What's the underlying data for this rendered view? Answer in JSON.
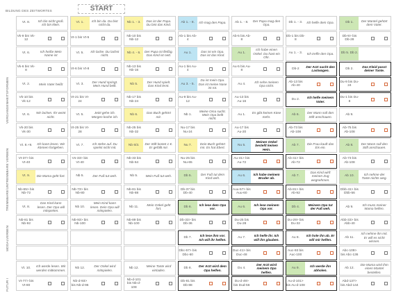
{
  "page": {
    "start_label": "START"
  },
  "bands": [
    {
      "label": "Bildung des Zeitwortes",
      "orient": "horizontal"
    },
    {
      "label": "Vergangenheitsformen",
      "orient": "vertical"
    },
    {
      "label": "Trennbare/untrennbare Verben",
      "orient": "vertical"
    },
    {
      "label": "Modalverben",
      "orient": "vertical"
    },
    {
      "label": "Futur I",
      "orient": "vertical"
    }
  ],
  "rows": [
    [
      {
        "t": "Vt. 8.",
        "s": "Ich bin nicht groß. Ich bin klein.",
        "c": "w"
      },
      {
        "t": "Vt. 1.",
        "s": "Ich bin da. Du bist nicht da.",
        "c": "y"
      },
      {
        "t": "Nb 1. - 3.",
        "s": "Das ist der Papa. Du bist das Kind.",
        "c": "y"
      },
      {
        "t": "Ab 1. - 8.",
        "s": "Ich mag den Papa.",
        "c": "b"
      },
      {
        "t": "Ab 1. - 8.",
        "s": "Der Papa mag den Opa.",
        "c": "w"
      },
      {
        "t": "Db 1. - 3.",
        "s": "Ich helfe dem Opa.",
        "c": "w"
      },
      {
        "t": "Db 1.",
        "s": "Der Mantel gehört dem Vater.",
        "c": "g"
      }
    ],
    [
      {
        "t": "Vk-9 bis Vk-12",
        "s": "",
        "c": "w",
        "box": true
      },
      {
        "t": "Vt-1 bis Vt-5",
        "s": "",
        "c": "w",
        "box": true
      },
      {
        "t": "Nb-10 bis Nb-12",
        "s": "",
        "c": "w",
        "box": true
      },
      {
        "t": "Ab-1 bis Ab-4",
        "s": "",
        "c": "w",
        "box": true
      },
      {
        "t": "Ab-5 bis Ab-8",
        "s": "",
        "c": "w",
        "box": true
      },
      {
        "t": "Db-1 bis Db-8",
        "s": "",
        "c": "w",
        "box": true
      },
      {
        "t": "Db-9> bis Db-28",
        "s": "",
        "c": "w",
        "box": true
      }
    ],
    [
      {
        "t": "Vt. 6.",
        "s": "Ich heiße Mein Name ist",
        "c": "w"
      },
      {
        "t": "Vt. 5.",
        "s": "Ich lache. Du lachst nicht.",
        "c": "w"
      },
      {
        "t": "Nb 4. - 6.",
        "s": "Der Papa ist fleißig. Das Kind ist nett.",
        "c": "y"
      },
      {
        "t": "Au 1.",
        "s": "Das ist ein Opa. Das ist das Kind.",
        "c": "b"
      },
      {
        "t": "Au 1.",
        "s": "Ich habe einen Onkel. Du hast ein Ohr.",
        "c": "g"
      },
      {
        "t": "Au 1. - 3.",
        "s": "Ich treffe den Opa.",
        "c": "w"
      },
      {
        "t": "Db 5. Db 2.",
        "s": "",
        "c": "g"
      }
    ],
    [
      {
        "t": "Vk-6 bis Vk-8",
        "s": "",
        "c": "w",
        "box": true
      },
      {
        "t": "Vt-6 bis Vt-8",
        "s": "",
        "c": "w",
        "box": true
      },
      {
        "t": "Nb-13 bis Nb-16",
        "s": "",
        "c": "w",
        "box": true
      },
      {
        "t": "Au-1 bis Au-4",
        "s": "",
        "c": "w",
        "box": true
      },
      {
        "t": "Au-5 bis Au-8",
        "s": "",
        "c": "w",
        "box": true
      },
      {
        "t": "Db-2",
        "s": "Der Arzt sucht den Lastwagen.",
        "c": "w",
        "bold": true
      },
      {
        "t": "Db 2.",
        "s": "Das Kleid passt deiner Tante.",
        "c": "w",
        "bold": true
      }
    ],
    [
      {
        "t": "Vt. 2.",
        "s": "Mein Vater heißt",
        "c": "w"
      },
      {
        "t": "Vt. 3.",
        "s": "Der Hund springt. Mein Hund bellt.",
        "c": "w"
      },
      {
        "t": "Nb 5.",
        "s": "Der Hund spielt. Das Kind lernt.",
        "c": "y"
      },
      {
        "t": "Au 3. - 5.",
        "s": "Da ist mein Opa. Das ist meine Nase ist rot.",
        "c": "b"
      },
      {
        "t": "Au 4.",
        "s": "Ich sehe meinen Opa nicht.",
        "c": "w"
      },
      {
        "t": "Ab-13 bis Ab-40",
        "s": "",
        "c": "w",
        "box": true,
        "bold": true
      },
      {
        "t": "Du-9 bis Du-24",
        "s": "",
        "c": "w",
        "box": true,
        "bold": true
      }
    ],
    [
      {
        "t": "Vk-10 bis Vk-12",
        "s": "",
        "c": "w",
        "box": true
      },
      {
        "t": "Vt-21 bis Vt-24",
        "s": "",
        "c": "w",
        "box": true
      },
      {
        "t": "Nb-17 bis Nb-24",
        "s": "",
        "c": "w",
        "box": true
      },
      {
        "t": "Au-9 bis Au-12",
        "s": "",
        "c": "w",
        "box": true
      },
      {
        "t": "Au-13 bis Au-16",
        "s": "",
        "c": "w",
        "box": true
      },
      {
        "t": "Du 2.",
        "s": "Ich helfe meinem Vater.",
        "c": "w",
        "bold": true
      },
      {
        "t": "Du-1 bis Du-8",
        "s": "",
        "c": "w",
        "box": true,
        "bold": true
      }
    ],
    [
      {
        "t": "Vt. 6.",
        "s": "Wir lachen. Ihr weint nicht.",
        "c": "w"
      },
      {
        "t": "Vt. 5.",
        "s": "Jetzt gehe ich. Morgen koche ich.",
        "c": "w"
      },
      {
        "t": "Nb 6.",
        "s": "Das Buch gehört mir.",
        "c": "y"
      },
      {
        "t": "Nb 1.",
        "s": "Meine Oma sucht. Mein Opa bellt nicht.",
        "c": "w"
      },
      {
        "t": "Au 1.",
        "s": "Es gibt keinen Käse mehr.",
        "c": "w"
      },
      {
        "t": "Ab 6.",
        "s": "Der Mann soll den Stift anschauen.",
        "c": "g"
      },
      {
        "t": "Ab 9.",
        "s": "",
        "c": "w"
      }
    ],
    [
      {
        "t": "Vk-20 bis Vk-30",
        "s": "",
        "c": "w",
        "box": true
      },
      {
        "t": "Vt-25 bis Vt-28",
        "s": "",
        "c": "w",
        "box": true
      },
      {
        "t": "Nb-25 bis Nb-32",
        "s": "",
        "c": "w",
        "box": true
      },
      {
        "t": "Nu-17 bis Nu-24",
        "s": "",
        "c": "w",
        "box": true
      },
      {
        "t": "Au-17 bis Au-20",
        "s": "",
        "c": "w",
        "box": true
      },
      {
        "t": "Ab-73 bis Ab-108",
        "s": "",
        "c": "w",
        "box": true,
        "bold": true
      },
      {
        "t": "Ab-75 bis Ab-108",
        "s": "",
        "c": "w",
        "box": true,
        "bold": true
      }
    ],
    [
      {
        "t": "Vt. 8.+9.",
        "s": "Ich kann lesen. Wir können fortgehen.",
        "c": "w"
      },
      {
        "t": "Vt. 7.",
        "s": "Ich stehe auf. Du spielst nicht mit.",
        "c": "w"
      },
      {
        "t": "Nb 6/3.",
        "s": "Der Stift kostet 1 €. Er gefällt mir.",
        "c": "y"
      },
      {
        "t": "Nu 7.",
        "s": "Dein Buch gehört mir. Es hat Ebert.",
        "c": "y"
      },
      {
        "t": "Nu 5.",
        "s": "Meinen Onkel bestellt keinen Hein.",
        "c": "b",
        "bold": true
      },
      {
        "t": "Ab 7.",
        "s": "Die Frau kauft das Eis ein.",
        "c": "g"
      },
      {
        "t": "Ab 8.",
        "s": "Der Mann soll den Stift anschauen.",
        "c": "g"
      }
    ],
    [
      {
        "t": "Vt-37> bis Vt-40",
        "s": "",
        "c": "w",
        "box": true
      },
      {
        "t": "Vs-33> bis Vt-40",
        "s": "",
        "c": "w",
        "box": true
      },
      {
        "t": "Nb-33 bis Nb-64",
        "s": "",
        "c": "w",
        "box": true
      },
      {
        "t": "Nu-25 bis Nu-65",
        "s": "",
        "c": "w",
        "box": true
      },
      {
        "t": "Au-41> bis Au-72",
        "s": "",
        "c": "w",
        "box": true,
        "bold": true
      },
      {
        "t": "Ab-41> bis Ab-72",
        "s": "",
        "c": "w",
        "box": true,
        "bold": true
      },
      {
        "t": "Ab-73 bis Ab-108",
        "s": "",
        "c": "w",
        "box": true
      }
    ],
    [
      {
        "t": "Vt. 9.",
        "s": "Die Mama geht fort.",
        "c": "y"
      },
      {
        "t": "Nb 5.",
        "s": "Der Fuß tut weh.",
        "c": "w"
      },
      {
        "t": "Nb 5.",
        "s": "Mein Fuß tut weh.",
        "c": "w"
      },
      {
        "t": "Db 5.",
        "s": "Der Fuß tut dem Kind weh.",
        "c": "g"
      },
      {
        "t": "Au 6.",
        "s": "Ich habe meinem Bruder ab.",
        "c": "b",
        "bold": true
      },
      {
        "t": "Ab 7.",
        "s": "Das Kind wirft meinen Zug wegnehmen.",
        "c": "g"
      },
      {
        "t": "Ab 10.",
        "s": "Ich nehme der Tante nichts weg.",
        "c": "g"
      }
    ],
    [
      {
        "t": "Nb-65> bis Nb-72",
        "s": "",
        "c": "w",
        "box": true
      },
      {
        "t": "Nb-73> bis Nb-80",
        "s": "",
        "c": "w",
        "box": true
      },
      {
        "t": "Nb-81 bis Nb-88",
        "s": "",
        "c": "w",
        "box": true
      },
      {
        "t": "Db-37 bis Db-40",
        "s": "",
        "c": "w",
        "box": true
      },
      {
        "t": "Auu-57> bis Auu-60",
        "s": "",
        "c": "w",
        "box": true,
        "bold": true
      },
      {
        "t": "Ab-81> bis Ab-92",
        "s": "",
        "c": "w",
        "box": true,
        "bold": true
      },
      {
        "t": "Dbb-41> bis Dbb-56",
        "s": "",
        "c": "w",
        "box": true
      }
    ],
    [
      {
        "t": "Vt. 8.",
        "s": "Das Kind kann lesen. Der Opa will mitspielen.",
        "c": "w"
      },
      {
        "t": "Nb 10.",
        "s": "Mein Kind kann lesen. Dein Opa will mitspielen.",
        "c": "w"
      },
      {
        "t": "Nb 11.",
        "s": "Mein Onkel geht fort.",
        "c": "w"
      },
      {
        "t": "Db 6.",
        "s": "Ich lese dem Opa vor.",
        "c": "g",
        "bold": true
      },
      {
        "t": "Au 6.",
        "s": "Ich lese meinem Opa vor.",
        "c": "g",
        "bold": true
      },
      {
        "t": "Db 4.",
        "s": "Meinem Opa tut der Fuß weh.",
        "c": "g",
        "bold": true
      },
      {
        "t": "Ab 9.",
        "s": "Ich muss meiner Mama helfen.",
        "c": "w"
      }
    ],
    [
      {
        "t": "Nb-81 bis Nb-92",
        "s": "",
        "c": "w",
        "box": true
      },
      {
        "t": "Nb-93> bis Nb-100",
        "s": "",
        "c": "w",
        "box": true
      },
      {
        "t": "Nb-89 bis Nb-100",
        "s": "",
        "c": "w",
        "box": true
      },
      {
        "t": "Db-33> bis Db-36",
        "s": "",
        "c": "w",
        "box": true
      },
      {
        "t": "Du-25 bis Du-28",
        "s": "",
        "c": "w",
        "box": true,
        "bold": true
      },
      {
        "t": "Du-29> bis Du-32",
        "s": "",
        "c": "w",
        "box": true,
        "bold": true
      },
      {
        "t": "Abb-33> bis Abb-40",
        "s": "",
        "c": "w",
        "box": true
      }
    ],
    [
      {
        "t": "",
        "s": "",
        "c": "w"
      },
      {
        "t": "",
        "s": "",
        "c": "w"
      },
      {
        "t": "",
        "s": "",
        "c": "w"
      },
      {
        "t": "Db 7.",
        "s": "Ich lese ihm vor. Ich will ihr helfen.",
        "c": "w",
        "bold": true
      },
      {
        "t": "Au 7.",
        "s": "Ich helfe ihr. Ich will ihn glauben.",
        "c": "w",
        "bold": true
      },
      {
        "t": "Au 8.",
        "s": "Ich hole ihn ab. Er will mir helfen.",
        "c": "w",
        "bold": true
      },
      {
        "t": "Ab 11.",
        "s": "Ich nehme ihn mit. Er will es nicht wissen.",
        "c": "w"
      }
    ],
    [
      {
        "t": "",
        "s": "",
        "c": "w"
      },
      {
        "t": "",
        "s": "",
        "c": "w"
      },
      {
        "t": "",
        "s": "",
        "c": "w"
      },
      {
        "t": "Dbc-57> bis Dbc-60",
        "s": "",
        "c": "w",
        "box": true
      },
      {
        "t": "Duc-41> bis Duc-48",
        "s": "",
        "c": "w",
        "box": true,
        "bold": true
      },
      {
        "t": "Auc-93 bis Auc-100",
        "s": "",
        "c": "w",
        "box": true,
        "bold": true
      },
      {
        "t": "Abc-109> bis Abc-136",
        "s": "",
        "c": "w",
        "box": true
      }
    ],
    [
      {
        "t": "Vt. 10.",
        "s": "Ich werde lesen. Wir werden mitkommen.",
        "c": "w"
      },
      {
        "t": "Nb 12.",
        "s": "Der Onkel wird mitspielen.",
        "c": "w"
      },
      {
        "t": "Nb 12.",
        "s": "Meine Tante wird einladen.",
        "c": "w"
      },
      {
        "t": "Db 8.",
        "s": "Der Arzt wird dem Opa helfen.",
        "c": "w",
        "bold": true
      },
      {
        "t": "Du 4.",
        "s": "Der Arzt wird meinem Opa helfen.",
        "c": "w",
        "bold": true
      },
      {
        "t": "Au 9.",
        "s": "Ich werde ihn abholen.",
        "c": "g",
        "bold": true
      },
      {
        "t": "Ab 12.",
        "s": "Die Mama wird ihm einen Mantel bestellen.",
        "c": "w"
      }
    ],
    [
      {
        "t": "Vt-77> bis Vt-80",
        "s": "",
        "c": "w",
        "box": true
      },
      {
        "t": "Nb-d-93> bis Nb-d-96",
        "s": "",
        "c": "w",
        "box": true
      },
      {
        "t": "Nb-d-101 bis Nb-d-108",
        "s": "",
        "c": "w",
        "box": true
      },
      {
        "t": "Db-81 bis Db-88",
        "s": "",
        "c": "w",
        "box": true,
        "bold": true
      },
      {
        "t": "Du-d-49> bis Dud-56",
        "s": "",
        "c": "w",
        "box": true,
        "bold": true
      },
      {
        "t": "Au-d-101> bis Au-d-108",
        "s": "",
        "c": "w",
        "box": true,
        "bold": true
      },
      {
        "t": "Abd-137> bis Abd-144",
        "s": "",
        "c": "w",
        "box": true
      }
    ]
  ]
}
